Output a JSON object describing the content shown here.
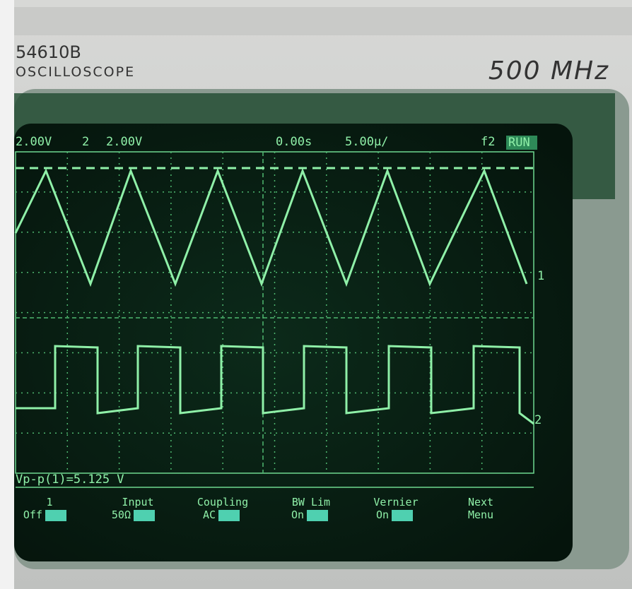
{
  "header": {
    "model": "54610B",
    "kind": "OSCILLOSCOPE",
    "bandwidth": "500 MHz"
  },
  "screen": {
    "ch1_scale": "2.00V",
    "ch2_label": "2",
    "ch2_scale": "2.00V",
    "time_ref": "0.00s",
    "time_scale": "5.00µ/",
    "trigger": "f2",
    "run": "RUN",
    "ch1_marker": "1",
    "ch2_marker": "2",
    "measurement": "Vp-p(1)=5.125 V"
  },
  "softkeys": [
    {
      "top": "1",
      "bottom": "Off"
    },
    {
      "top": "Input",
      "bottom": "50Ω"
    },
    {
      "top": "Coupling",
      "bottom": "AC"
    },
    {
      "top": "BW Lim",
      "bottom": "On"
    },
    {
      "top": "Vernier",
      "bottom": "On"
    },
    {
      "top": "Next",
      "bottom": "Menu"
    }
  ]
}
